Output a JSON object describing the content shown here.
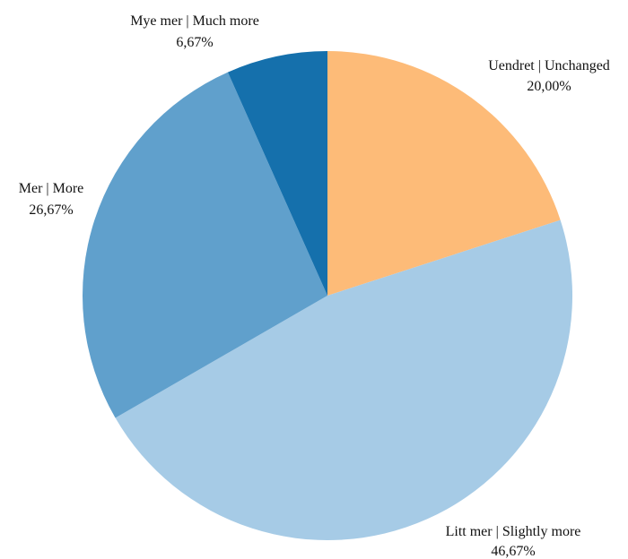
{
  "chart_data": {
    "type": "pie",
    "title": "",
    "start_angle_deg": 0,
    "direction": "clockwise",
    "slices": [
      {
        "label": "Uendret | Unchanged",
        "value_label": "20,00%",
        "value": 20.0,
        "color": "#fdbb78"
      },
      {
        "label": "Litt mer | Slightly more",
        "value_label": "46,67%",
        "value": 46.67,
        "color": "#a6cbe6"
      },
      {
        "label": "Mer | More",
        "value_label": "26,67%",
        "value": 26.67,
        "color": "#60a0cc"
      },
      {
        "label": "Mye mer | Much more",
        "value_label": "6,67%",
        "value": 6.67,
        "color": "#1570ac"
      }
    ]
  }
}
